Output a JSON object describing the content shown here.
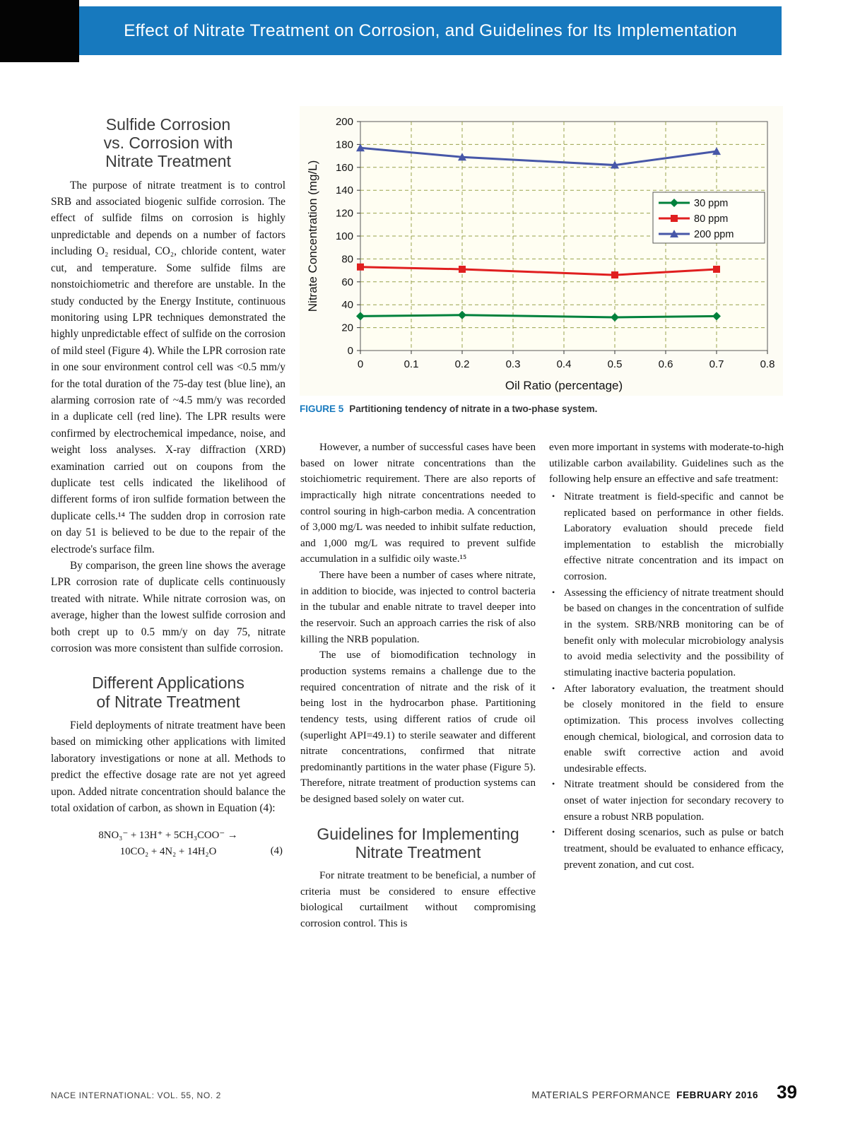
{
  "header": {
    "title": "Effect of Nitrate Treatment on Corrosion, and Guidelines for Its Implementation",
    "band_color": "#1779be"
  },
  "left_column": {
    "heading1_lines": [
      "Sulfide Corrosion",
      "vs. Corrosion with",
      "Nitrate Treatment"
    ],
    "para1": "The purpose of nitrate treatment is to control SRB and associated biogenic sulfide corrosion. The effect of sulfide films on corrosion is highly unpredictable and depends on a number of factors including O₂ residual, CO₂, chloride content, water cut, and temperature. Some sulfide films are nonstoichiometric and therefore are unstable. In the study conducted by the Energy Institute, continuous monitoring using LPR techniques demonstrated the highly unpredictable effect of sulfide on the corrosion of mild steel (Figure 4). While the LPR corrosion rate in one sour environment control cell was <0.5 mm/y for the total duration of the 75-day test (blue line), an alarming corrosion rate of ~4.5 mm/y was recorded in a duplicate cell (red line). The LPR results were confirmed by electrochemical impedance, noise, and weight loss analyses. X-ray diffraction (XRD) examination carried out on coupons from the duplicate test cells indicated the likelihood of different forms of iron sulfide formation between the duplicate cells.¹⁴ The sudden drop in corrosion rate on day 51 is believed to be due to the repair of the electrode's surface film.",
    "para2": "By comparison, the green line shows the average LPR corrosion rate of duplicate cells continuously treated with nitrate. While nitrate corrosion was, on average, higher than the lowest sulfide corrosion and both crept up to 0.5 mm/y on day 75, nitrate corrosion was more consistent than sulfide corrosion.",
    "heading2_lines": [
      "Different Applications",
      "of Nitrate Treatment"
    ],
    "para3": "Field deployments of nitrate treatment have been based on mimicking other applications with limited laboratory investigations or none at all. Methods to predict the effective dosage rate are not yet agreed upon. Added nitrate concentration should balance the total oxidation of carbon, as shown in Equation (4):",
    "equation": {
      "line1": "8NO₃⁻ + 13H⁺ + 5CH₃COO⁻ →",
      "line2": "10CO₂ + 4N₂ + 14H₂O",
      "number": "(4)"
    }
  },
  "figure": {
    "label": "FIGURE 5",
    "caption": "Partitioning tendency of nitrate in a two-phase system."
  },
  "chart_data": {
    "type": "line",
    "x": [
      0,
      0.2,
      0.5,
      0.7
    ],
    "series": [
      {
        "name": "30 ppm",
        "values": [
          30,
          31,
          29,
          30
        ],
        "color": "#00813c",
        "marker": "diamond"
      },
      {
        "name": "80 ppm",
        "values": [
          73,
          71,
          66,
          71
        ],
        "color": "#e01f1f",
        "marker": "square"
      },
      {
        "name": "200 ppm",
        "values": [
          177,
          169,
          162,
          174
        ],
        "color": "#4757a8",
        "marker": "triangle"
      }
    ],
    "title": "",
    "xlabel": "Oil Ratio (percentage)",
    "ylabel": "Nitrate Concentration (mg/L)",
    "xlim": [
      0,
      0.8
    ],
    "ylim": [
      0,
      200
    ],
    "xtick": 0.1,
    "ytick": 20,
    "grid": true,
    "grid_color": "#99a24c",
    "plot_bg": "#fffef2",
    "legend_position": "right-inside"
  },
  "middle_column": {
    "para1": "However, a number of successful cases have been based on lower nitrate concentrations than the stoichiometric requirement. There are also reports of impractically high nitrate concentrations needed to control souring in high-carbon media. A concentration of 3,000 mg/L was needed to inhibit sulfate reduction, and 1,000 mg/L was required to prevent sulfide accumulation in a sulfidic oily waste.¹⁵",
    "para2": "There have been a number of cases where nitrate, in addition to biocide, was injected to control bacteria in the tubular and enable nitrate to travel deeper into the reservoir. Such an approach carries the risk of also killing the NRB population.",
    "para3": "The use of biomodification technology in production systems remains a challenge due to the required concentration of nitrate and the risk of it being lost in the hydrocarbon phase. Partitioning tendency tests, using different ratios of crude oil (superlight API=49.1) to sterile seawater and different nitrate concentrations, confirmed that nitrate predominantly partitions in the water phase (Figure 5). Therefore, nitrate treatment of production systems can be designed based solely on water cut.",
    "heading_lines": [
      "Guidelines for Implementing",
      "Nitrate Treatment"
    ],
    "para4": "For nitrate treatment to be beneficial, a number of criteria must be considered to ensure effective biological curtailment without compromising corrosion control. This is"
  },
  "right_column": {
    "intro": "even more important in systems with moderate-to-high utilizable carbon availability. Guidelines such as the following help ensure an effective and safe treatment:",
    "bullets": [
      "Nitrate treatment is field-specific and cannot be replicated based on performance in other fields. Laboratory evaluation should precede field implementation to establish the microbially effective nitrate concentration and its impact on corrosion.",
      "Assessing the efficiency of nitrate treatment should be based on changes in the concentration of sulfide in the system. SRB/NRB monitoring can be of benefit only with molecular microbiology analysis to avoid media selectivity and the possibility of stimulating inactive bacteria population.",
      "After laboratory evaluation, the treatment should be closely monitored in the field to ensure optimization. This process involves collecting enough chemical, biological, and corrosion data to enable swift corrective action and avoid undesirable effects.",
      "Nitrate treatment should be considered from the onset of water injection for secondary recovery to ensure a robust NRB population.",
      "Different dosing scenarios, such as pulse or batch treatment, should be evaluated to enhance efficacy, prevent zonation, and cut cost."
    ]
  },
  "footer": {
    "left": "NACE INTERNATIONAL: VOL. 55, NO. 2",
    "magazine": "MATERIALS PERFORMANCE",
    "issue": "FEBRUARY 2016",
    "page_number": "39"
  }
}
